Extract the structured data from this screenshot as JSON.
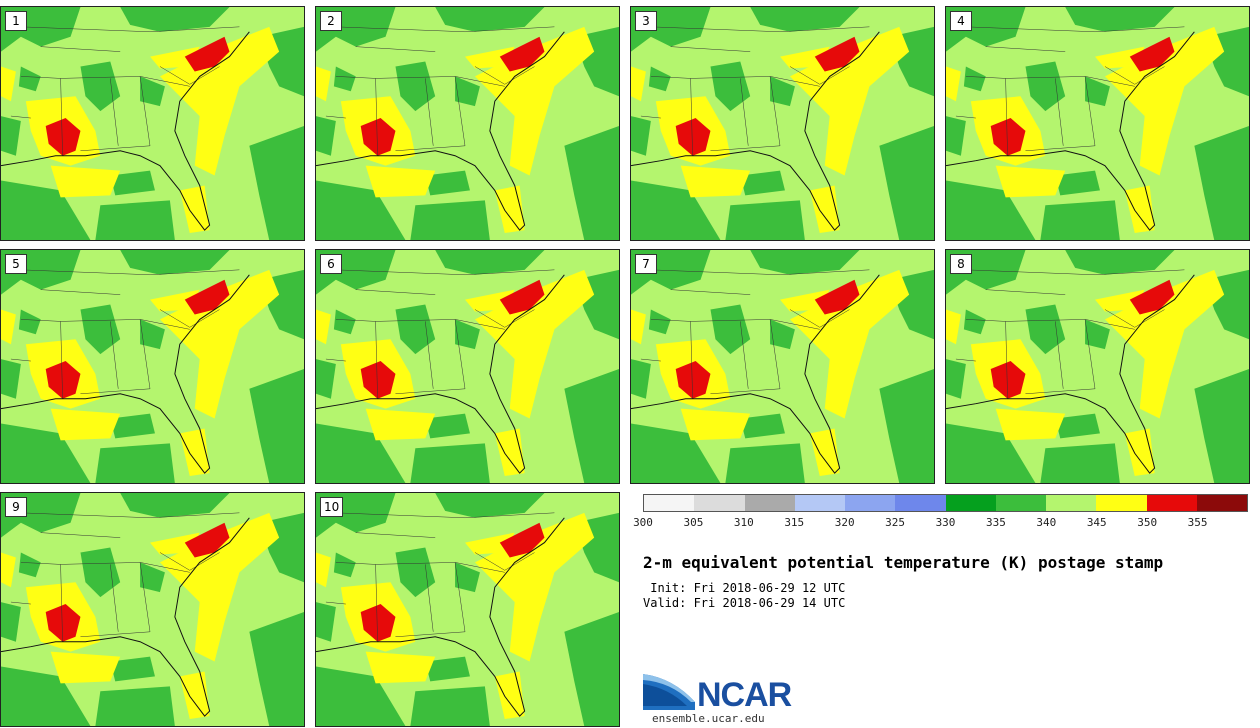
{
  "panels": [
    {
      "label": "1"
    },
    {
      "label": "2"
    },
    {
      "label": "3"
    },
    {
      "label": "4"
    },
    {
      "label": "5"
    },
    {
      "label": "6"
    },
    {
      "label": "7"
    },
    {
      "label": "8"
    },
    {
      "label": "9"
    },
    {
      "label": "10"
    }
  ],
  "colorbar": {
    "colors": [
      "#f5f5f5",
      "#dcdcdc",
      "#aaaaaa",
      "#b4c8f5",
      "#8ca5f0",
      "#6e87eb",
      "#05a01e",
      "#3cbe3c",
      "#b4f56e",
      "#ffff14",
      "#e60a0a",
      "#8c0a0a"
    ],
    "ticks": [
      "300",
      "305",
      "310",
      "315",
      "320",
      "325",
      "330",
      "335",
      "340",
      "345",
      "350",
      "355"
    ]
  },
  "title": "2-m equivalent potential temperature (K) postage stamp",
  "init": " Init: Fri 2018-06-29 12 UTC",
  "valid": "Valid: Fri 2018-06-29 14 UTC",
  "logo": {
    "text": "NCAR",
    "url": "ensemble.ucar.edu"
  }
}
